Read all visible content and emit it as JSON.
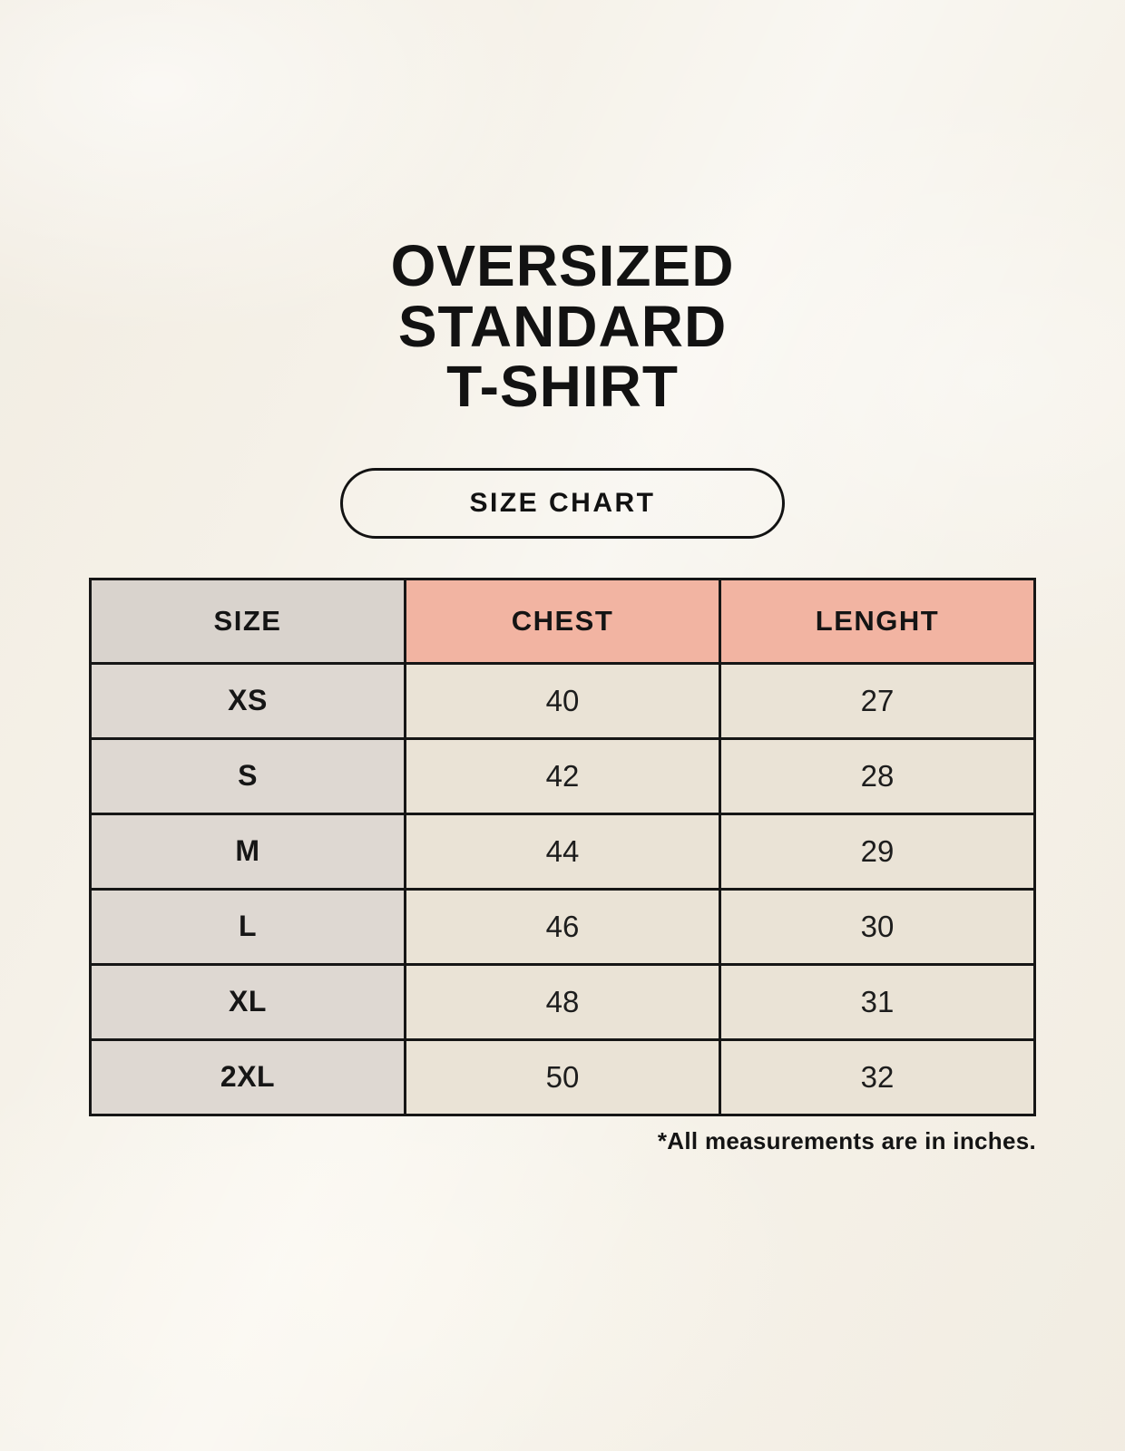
{
  "header": {
    "title_lines": [
      "OVERSIZED",
      "STANDARD",
      "T-SHIRT"
    ],
    "badge_label": "SIZE CHART"
  },
  "size_chart": {
    "columns": [
      "SIZE",
      "CHEST",
      "LENGHT"
    ],
    "rows": [
      {
        "size": "XS",
        "chest": "40",
        "length": "27"
      },
      {
        "size": "S",
        "chest": "42",
        "length": "28"
      },
      {
        "size": "M",
        "chest": "44",
        "length": "29"
      },
      {
        "size": "L",
        "chest": "46",
        "length": "30"
      },
      {
        "size": "XL",
        "chest": "48",
        "length": "31"
      },
      {
        "size": "2XL",
        "chest": "50",
        "length": "32"
      }
    ],
    "footnote": "*All measurements are in inches.",
    "colors": {
      "page_background": "#f5f1e8",
      "header_size_bg": "#d9d3cd",
      "header_measure_bg": "#f2b4a2",
      "body_size_bg": "#ded8d2",
      "body_value_bg": "#eae3d6",
      "border": "#161616",
      "text": "#141414"
    }
  }
}
